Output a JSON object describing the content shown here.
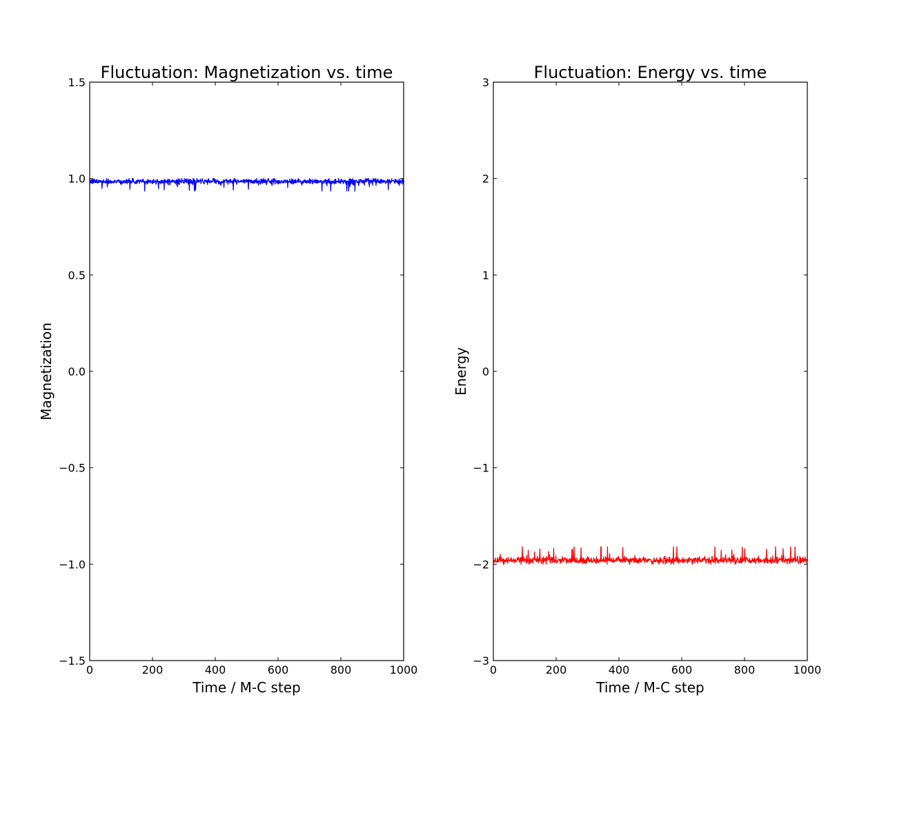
{
  "chart_data": [
    {
      "type": "line",
      "title": "Fluctuation: Magnetization vs. time",
      "xlabel": "Time / M-C step",
      "ylabel": "Magnetization",
      "xlim": [
        0,
        1000
      ],
      "ylim": [
        -1.5,
        1.5
      ],
      "xticks": [
        0,
        200,
        400,
        600,
        800,
        1000
      ],
      "xtick_labels": [
        "0",
        "200",
        "400",
        "600",
        "800",
        "1000"
      ],
      "yticks": [
        -1.5,
        -1.0,
        -0.5,
        0.0,
        0.5,
        1.0,
        1.5
      ],
      "ytick_labels": [
        "−1.5",
        "−1.0",
        "−0.5",
        "0.0",
        "0.5",
        "1.0",
        "1.5"
      ],
      "grid": false,
      "series": [
        {
          "color": "#0000ff",
          "n_points": 1000,
          "mean": 0.985,
          "spread": 0.012,
          "min": 0.935,
          "max": 1.0,
          "upper_bound": 1.0
        }
      ]
    },
    {
      "type": "line",
      "title": "Fluctuation: Energy vs. time",
      "xlabel": "Time / M-C step",
      "ylabel": "Energy",
      "xlim": [
        0,
        1000
      ],
      "ylim": [
        -3,
        3
      ],
      "xticks": [
        0,
        200,
        400,
        600,
        800,
        1000
      ],
      "xtick_labels": [
        "0",
        "200",
        "400",
        "600",
        "800",
        "1000"
      ],
      "yticks": [
        -3,
        -2,
        -1,
        0,
        1,
        2,
        3
      ],
      "ytick_labels": [
        "−3",
        "−2",
        "−1",
        "0",
        "1",
        "2",
        "3"
      ],
      "grid": false,
      "series": [
        {
          "color": "#ff0000",
          "n_points": 1000,
          "mean": -1.96,
          "spread": 0.03,
          "min": -2.0,
          "max": -1.82,
          "lower_bound": -2.0
        }
      ]
    }
  ]
}
